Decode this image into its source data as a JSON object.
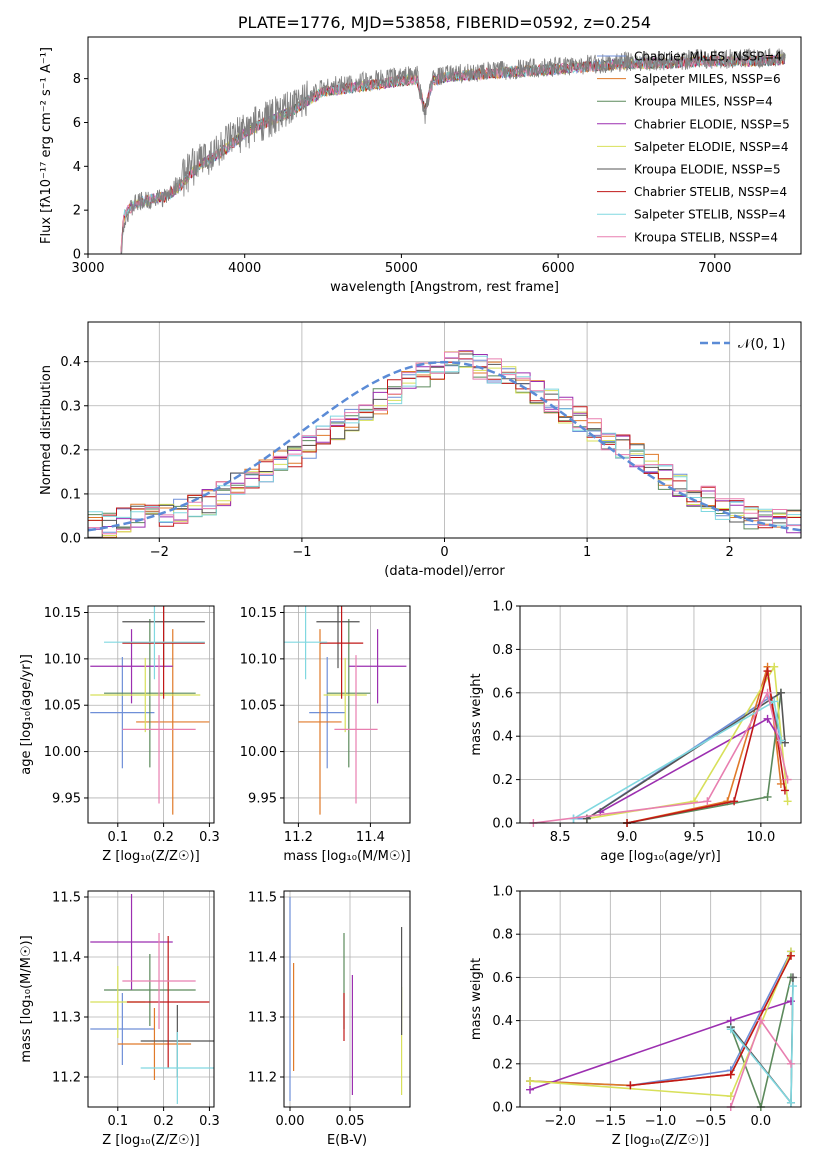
{
  "colors": [
    "#6F8FD8",
    "#E07A2A",
    "#5C8A5C",
    "#9C2FB0",
    "#D8E05A",
    "#555555",
    "#C01818",
    "#80D8E0",
    "#E87FB0",
    "#6A1090",
    "#808080"
  ],
  "chart_data": [
    {
      "type": "line",
      "title": "PLATE=1776, MJD=53858, FIBERID=0592, z=0.254",
      "xlabel": "wavelength [Angstrom, rest frame]",
      "ylabel": "Flux [fλ10⁻¹⁷ erg cm⁻² s⁻¹ A⁻¹]",
      "xlim": [
        3000,
        7550
      ],
      "ylim": [
        0,
        9.9
      ],
      "xticks": [
        "3000",
        "4000",
        "5000",
        "6000",
        "7000"
      ],
      "yticks": [
        "0",
        "2",
        "4",
        "6",
        "8"
      ],
      "legend_position": "top-right",
      "legend": [
        "Chabrier MILES, NSSP=4",
        "Salpeter MILES, NSSP=6",
        "Kroupa MILES, NSSP=4",
        "Chabrier ELODIE, NSSP=5",
        "Salpeter ELODIE, NSSP=4",
        "Kroupa ELODIE, NSSP=5",
        "Chabrier STELIB, NSSP=4",
        "Salpeter STELIB, NSSP=4",
        "Kroupa STELIB, NSSP=4"
      ],
      "data_series": {
        "name": "data",
        "x": [
          3210,
          3230,
          3300,
          3400,
          3500,
          3600,
          3700,
          3800,
          3900,
          4000,
          4100,
          4200,
          4300,
          4400,
          4500,
          4700,
          4900,
          5100,
          5150,
          5200,
          5300,
          5500,
          5700,
          5900,
          6100,
          6300,
          6500,
          6700,
          6900,
          7100,
          7300,
          7450
        ],
        "y": [
          0,
          1.6,
          2.3,
          2.5,
          2.6,
          3.4,
          4.2,
          4.6,
          5.1,
          5.6,
          6.0,
          6.3,
          6.6,
          7.2,
          7.6,
          7.8,
          8.0,
          8.2,
          6.3,
          8.0,
          8.2,
          8.3,
          8.4,
          8.5,
          8.6,
          8.7,
          8.8,
          8.8,
          8.9,
          8.9,
          8.9,
          9.0
        ]
      },
      "model_series": {
        "x": [
          3210,
          3230,
          3300,
          3400,
          3500,
          3600,
          3700,
          3800,
          3900,
          4000,
          4100,
          4200,
          4300,
          4400,
          4500,
          4700,
          4900,
          5100,
          5150,
          5200,
          5300,
          5500,
          5700,
          5900,
          6100,
          6300,
          6500,
          6700,
          6900,
          7100,
          7300,
          7450
        ],
        "y": [
          0,
          1.8,
          2.3,
          2.5,
          2.6,
          3.2,
          4.0,
          4.4,
          4.9,
          5.5,
          5.9,
          6.2,
          6.5,
          7.0,
          7.4,
          7.6,
          7.8,
          8.0,
          6.5,
          7.9,
          8.1,
          8.2,
          8.3,
          8.4,
          8.5,
          8.6,
          8.7,
          8.7,
          8.8,
          8.8,
          8.8,
          8.9
        ]
      }
    },
    {
      "type": "line",
      "xlabel": "(data-model)/error",
      "ylabel": "Normed distribution",
      "xlim": [
        -2.5,
        2.5
      ],
      "ylim": [
        0,
        0.49
      ],
      "xticks": [
        "−2",
        "−1",
        "0",
        "1",
        "2"
      ],
      "yticks": [
        "0.0",
        "0.1",
        "0.2",
        "0.3",
        "0.4"
      ],
      "legend_position": "top-right",
      "legend": [
        "𝒩(0, 1)"
      ],
      "bins_start": -2.5,
      "bin_width": 0.1,
      "hist_values": [
        0.03,
        0.03,
        0.04,
        0.05,
        0.05,
        0.05,
        0.06,
        0.07,
        0.08,
        0.1,
        0.12,
        0.13,
        0.15,
        0.17,
        0.19,
        0.21,
        0.23,
        0.25,
        0.27,
        0.29,
        0.31,
        0.33,
        0.35,
        0.37,
        0.38,
        0.4,
        0.4,
        0.39,
        0.38,
        0.37,
        0.35,
        0.33,
        0.31,
        0.29,
        0.27,
        0.25,
        0.23,
        0.21,
        0.19,
        0.17,
        0.14,
        0.12,
        0.1,
        0.09,
        0.07,
        0.06,
        0.05,
        0.05,
        0.04,
        0.04
      ]
    },
    {
      "type": "scatter",
      "xlabel": "Z [log₁₀(Z/Z☉)]",
      "ylabel": "age [log₁₀(age/yr)]",
      "xlim": [
        0.035,
        0.31
      ],
      "ylim": [
        9.923,
        10.157
      ],
      "xticks": [
        "0.1",
        "0.2",
        "0.3"
      ],
      "yticks": [
        "9.95",
        "10.00",
        "10.05",
        "10.10",
        "10.15"
      ],
      "points": [
        {
          "x": 0.11,
          "y": 10.042,
          "xerr": 0.07,
          "yerr": 0.06
        },
        {
          "x": 0.22,
          "y": 10.032,
          "xerr": 0.08,
          "yerr": 0.1
        },
        {
          "x": 0.17,
          "y": 10.063,
          "xerr": 0.1,
          "yerr": 0.08
        },
        {
          "x": 0.13,
          "y": 10.092,
          "xerr": 0.09,
          "yerr": 0.04
        },
        {
          "x": 0.16,
          "y": 10.061,
          "xerr": 0.12,
          "yerr": 0.04
        },
        {
          "x": 0.2,
          "y": 10.14,
          "xerr": 0.09,
          "yerr": 0.05
        },
        {
          "x": 0.2,
          "y": 10.117,
          "xerr": 0.09,
          "yerr": 0.06
        },
        {
          "x": 0.18,
          "y": 10.118,
          "xerr": 0.11,
          "yerr": 0.04
        },
        {
          "x": 0.19,
          "y": 10.024,
          "xerr": 0.08,
          "yerr": 0.08
        }
      ]
    },
    {
      "type": "scatter",
      "xlabel": "mass [log₁₀(M/M☉)]",
      "xlim": [
        11.16,
        11.51
      ],
      "ylim": [
        9.923,
        10.157
      ],
      "xticks": [
        "11.2",
        "11.4"
      ],
      "yticks": [
        "9.95",
        "10.00",
        "10.05",
        "10.10",
        "10.15"
      ],
      "points": [
        {
          "x": 11.28,
          "y": 10.042,
          "xerr": 0.05,
          "yerr": 0.06
        },
        {
          "x": 11.26,
          "y": 10.032,
          "xerr": 0.06,
          "yerr": 0.1
        },
        {
          "x": 11.34,
          "y": 10.063,
          "xerr": 0.06,
          "yerr": 0.08
        },
        {
          "x": 11.42,
          "y": 10.092,
          "xerr": 0.08,
          "yerr": 0.04
        },
        {
          "x": 11.33,
          "y": 10.061,
          "xerr": 0.06,
          "yerr": 0.04
        },
        {
          "x": 11.31,
          "y": 10.14,
          "xerr": 0.06,
          "yerr": 0.05
        },
        {
          "x": 11.32,
          "y": 10.117,
          "xerr": 0.06,
          "yerr": 0.06
        },
        {
          "x": 11.22,
          "y": 10.118,
          "xerr": 0.06,
          "yerr": 0.04
        },
        {
          "x": 11.36,
          "y": 10.024,
          "xerr": 0.06,
          "yerr": 0.08
        }
      ]
    },
    {
      "type": "line",
      "xlabel": "age [log₁₀(age/yr)]",
      "ylabel": "mass weight",
      "xlim": [
        8.2,
        10.3
      ],
      "ylim": [
        0,
        1
      ],
      "xticks": [
        "8.5",
        "9.0",
        "9.5",
        "10.0"
      ],
      "yticks": [
        "0.0",
        "0.2",
        "0.4",
        "0.6",
        "0.8",
        "1.0"
      ],
      "series": [
        {
          "x": [
            8.6,
            8.7,
            10.07,
            10.15
          ],
          "y": [
            0.02,
            0.02,
            0.58,
            0.38
          ]
        },
        {
          "x": [
            9.0,
            9.75,
            10.05,
            10.15
          ],
          "y": [
            0.0,
            0.1,
            0.72,
            0.18
          ]
        },
        {
          "x": [
            9.0,
            10.05,
            10.15
          ],
          "y": [
            0.0,
            0.12,
            0.6
          ]
        },
        {
          "x": [
            8.8,
            10.05,
            10.15
          ],
          "y": [
            0.05,
            0.48,
            0.38
          ]
        },
        {
          "x": [
            8.7,
            9.5,
            10.1,
            10.2
          ],
          "y": [
            0.02,
            0.1,
            0.72,
            0.1
          ]
        },
        {
          "x": [
            8.7,
            10.15,
            10.18
          ],
          "y": [
            0.02,
            0.6,
            0.37
          ]
        },
        {
          "x": [
            9.0,
            9.8,
            10.05,
            10.18
          ],
          "y": [
            0.0,
            0.1,
            0.7,
            0.15
          ]
        },
        {
          "x": [
            8.6,
            10.1,
            10.15
          ],
          "y": [
            0.02,
            0.56,
            0.38
          ]
        },
        {
          "x": [
            8.3,
            9.6,
            10.05,
            10.2
          ],
          "y": [
            0.0,
            0.1,
            0.6,
            0.2
          ]
        }
      ]
    },
    {
      "type": "scatter",
      "xlabel": "Z [log₁₀(Z/Z☉)]",
      "ylabel": "mass [log₁₀(M/M☉)]",
      "xlim": [
        0.035,
        0.31
      ],
      "ylim": [
        11.15,
        11.51
      ],
      "xticks": [
        "0.1",
        "0.2",
        "0.3"
      ],
      "yticks": [
        "11.2",
        "11.3",
        "11.4",
        "11.5"
      ],
      "points": [
        {
          "x": 0.11,
          "y": 11.28,
          "xerr": 0.07,
          "yerr": 0.06
        },
        {
          "x": 0.18,
          "y": 11.255,
          "xerr": 0.08,
          "yerr": 0.06
        },
        {
          "x": 0.17,
          "y": 11.345,
          "xerr": 0.1,
          "yerr": 0.06
        },
        {
          "x": 0.13,
          "y": 11.425,
          "xerr": 0.09,
          "yerr": 0.08
        },
        {
          "x": 0.1,
          "y": 11.325,
          "xerr": 0.06,
          "yerr": 0.06
        },
        {
          "x": 0.23,
          "y": 11.26,
          "xerr": 0.08,
          "yerr": 0.06
        },
        {
          "x": 0.21,
          "y": 11.325,
          "xerr": 0.09,
          "yerr": 0.11
        },
        {
          "x": 0.23,
          "y": 11.215,
          "xerr": 0.08,
          "yerr": 0.06
        },
        {
          "x": 0.19,
          "y": 11.36,
          "xerr": 0.08,
          "yerr": 0.08
        }
      ]
    },
    {
      "type": "scatter",
      "xlabel": "E(B-V)",
      "xlim": [
        -0.005,
        0.1
      ],
      "ylim": [
        11.15,
        11.51
      ],
      "xticks": [
        "0.00",
        "0.05"
      ],
      "yticks": [
        "11.2",
        "11.3",
        "11.4",
        "11.5"
      ],
      "points": [
        {
          "x": 0.0,
          "y": 11.33,
          "yerr": 0.17
        },
        {
          "x": 0.003,
          "y": 11.3,
          "yerr": 0.09
        },
        {
          "x": 0.045,
          "y": 11.36,
          "yerr": 0.08
        },
        {
          "x": 0.052,
          "y": 11.27,
          "yerr": 0.1
        },
        {
          "x": 0.093,
          "y": 11.26,
          "yerr": 0.09
        },
        {
          "x": 0.093,
          "y": 11.36,
          "yerr": 0.09
        },
        {
          "x": 0.045,
          "y": 11.3,
          "yerr": 0.04
        }
      ]
    },
    {
      "type": "line",
      "xlabel": "Z [log₁₀(Z/Z☉)]",
      "ylabel": "mass weight",
      "xlim": [
        -2.4,
        0.4
      ],
      "ylim": [
        0,
        1
      ],
      "xticks": [
        "−2.0",
        "−1.5",
        "−1.0",
        "−0.5",
        "0.0"
      ],
      "yticks": [
        "0.0",
        "0.2",
        "0.4",
        "0.6",
        "0.8",
        "1.0"
      ],
      "series": [
        {
          "x": [
            -2.3,
            -1.3,
            -0.3,
            0.3
          ],
          "y": [
            0.12,
            0.1,
            0.17,
            0.72
          ]
        },
        {
          "x": [
            -2.3,
            -1.3,
            -0.3,
            0.3
          ],
          "y": [
            0.12,
            0.1,
            0.15,
            0.7
          ]
        },
        {
          "x": [
            -0.3,
            0.0,
            0.3
          ],
          "y": [
            0.37,
            0.0,
            0.6
          ]
        },
        {
          "x": [
            -2.3,
            -0.3,
            0.3
          ],
          "y": [
            0.08,
            0.4,
            0.49
          ]
        },
        {
          "x": [
            -2.3,
            -0.3,
            0.3
          ],
          "y": [
            0.12,
            0.05,
            0.72
          ]
        },
        {
          "x": [
            -0.3,
            0.3,
            0.32
          ],
          "y": [
            0.37,
            0.02,
            0.6
          ]
        },
        {
          "x": [
            -1.3,
            -0.3,
            0.3
          ],
          "y": [
            0.1,
            0.15,
            0.7
          ]
        },
        {
          "x": [
            -0.3,
            0.3,
            0.32
          ],
          "y": [
            0.36,
            0.02,
            0.56
          ]
        },
        {
          "x": [
            -0.3,
            0.0,
            0.3
          ],
          "y": [
            0.0,
            0.4,
            0.2
          ]
        }
      ]
    }
  ]
}
